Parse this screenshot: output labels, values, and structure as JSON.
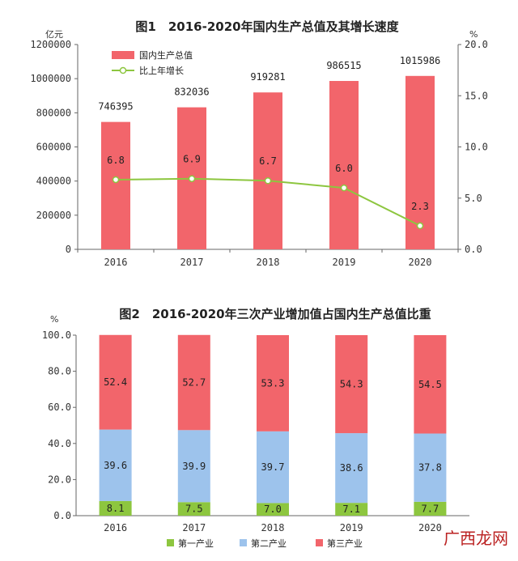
{
  "chart_data": [
    {
      "type": "bar",
      "title": "图1　2016-2020年国内生产总值及其增长速度",
      "categories": [
        "2016",
        "2017",
        "2018",
        "2019",
        "2020"
      ],
      "left_unit": "亿元",
      "right_unit": "%",
      "ylim": [
        0,
        1200000
      ],
      "y2lim": [
        0,
        20
      ],
      "left_ticks": [
        "0",
        "200000",
        "400000",
        "600000",
        "800000",
        "1000000",
        "1200000"
      ],
      "right_ticks": [
        "0.0",
        "5.0",
        "10.0",
        "15.0",
        "20.0"
      ],
      "series": [
        {
          "name": "国内生产总值",
          "type": "bar",
          "color": "#f2656b",
          "values": [
            746395,
            832036,
            919281,
            986515,
            1015986
          ],
          "labels": [
            "746395",
            "832036",
            "919281",
            "986515",
            "1015986"
          ]
        },
        {
          "name": "比上年增长",
          "type": "line",
          "axis": "right",
          "color": "#8dc63f",
          "values": [
            6.8,
            6.9,
            6.7,
            6.0,
            2.3
          ],
          "labels": [
            "6.8",
            "6.9",
            "6.7",
            "6.0",
            "2.3"
          ]
        }
      ],
      "legend": "top-left"
    },
    {
      "type": "bar",
      "stacked": true,
      "title": "图2　2016-2020年三次产业增加值占国内生产总值比重",
      "categories": [
        "2016",
        "2017",
        "2018",
        "2019",
        "2020"
      ],
      "y_unit": "%",
      "ylim": [
        0,
        100
      ],
      "y_ticks": [
        "0.0",
        "20.0",
        "40.0",
        "60.0",
        "80.0",
        "100.0"
      ],
      "series": [
        {
          "name": "第一产业",
          "color": "#8dc63f",
          "values": [
            8.1,
            7.5,
            7.0,
            7.1,
            7.7
          ],
          "labels": [
            "8.1",
            "7.5",
            "7.0",
            "7.1",
            "7.7"
          ]
        },
        {
          "name": "第二产业",
          "color": "#9dc3ec",
          "values": [
            39.6,
            39.9,
            39.7,
            38.6,
            37.8
          ],
          "labels": [
            "39.6",
            "39.9",
            "39.7",
            "38.6",
            "37.8"
          ]
        },
        {
          "name": "第三产业",
          "color": "#f2656b",
          "values": [
            52.4,
            52.7,
            53.3,
            54.3,
            54.5
          ],
          "labels": [
            "52.4",
            "52.7",
            "53.3",
            "54.3",
            "54.5"
          ]
        }
      ],
      "legend": "bottom"
    }
  ],
  "watermark": "广西龙网"
}
